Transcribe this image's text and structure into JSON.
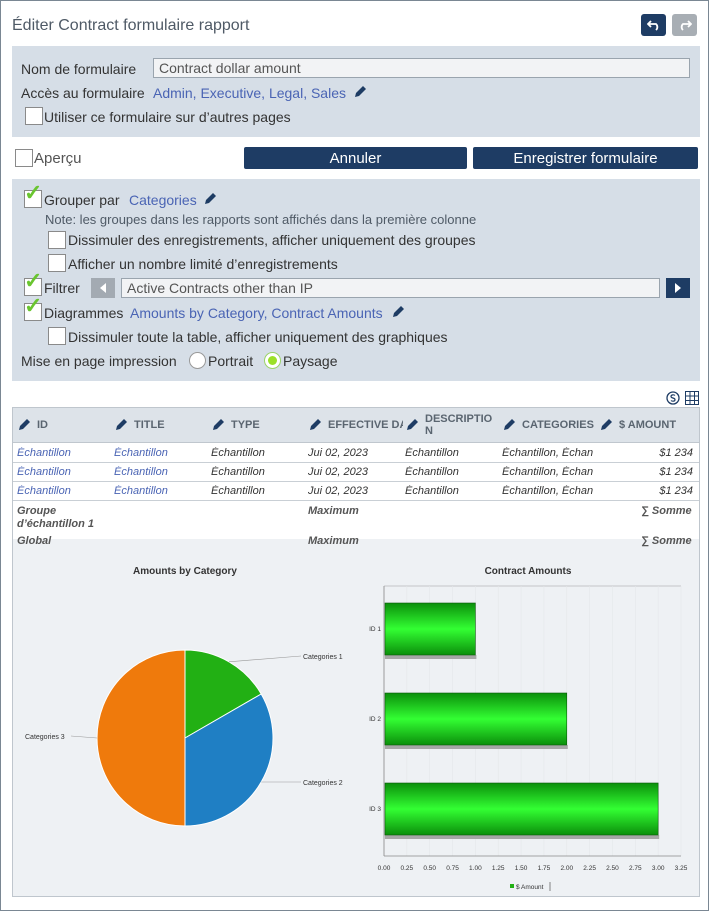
{
  "dialog": {
    "title": "Éditer Contract formulaire rapport"
  },
  "form": {
    "name_label": "Nom de formulaire",
    "name_value": "Contract dollar amount",
    "access_label": "Accès au formulaire",
    "access_value": "Admin, Executive, Legal, Sales",
    "use_other_pages": "Utiliser ce formulaire sur d’autres pages"
  },
  "preview_label": "Aperçu",
  "buttons": {
    "cancel": "Annuler",
    "save": "Enregistrer formulaire"
  },
  "options": {
    "group_by_label": "Grouper par",
    "group_by_value": "Categories",
    "note": "Note: les groupes dans les rapports sont affichés dans la première colonne",
    "hide_records": "Dissimuler des enregistrements, afficher uniquement des groupes",
    "limit_records": "Afficher un nombre limité d’enregistrements",
    "filter_label": "Filtrer",
    "filter_value": "Active Contracts other than IP",
    "charts_label": "Diagrammes",
    "charts_value": "Amounts by Category, Contract Amounts",
    "hide_table": "Dissimuler toute la table, afficher uniquement des graphiques",
    "print_layout_label": "Mise en page impression",
    "portrait": "Portrait",
    "landscape": "Paysage",
    "selected_layout": "Paysage"
  },
  "table": {
    "columns": [
      "ID",
      "TITLE",
      "TYPE",
      "EFFECTIVE DA",
      "DESCRIPTIO\nN",
      "CATEGORIES",
      "$ AMOUNT"
    ],
    "rows": [
      [
        "Échantillon",
        "Échantillon",
        "Échantillon",
        "Jui 02, 2023",
        "Échantillon",
        "Échantillon, Échan",
        "$1 234"
      ],
      [
        "Échantillon",
        "Échantillon",
        "Échantillon",
        "Jui 02, 2023",
        "Échantillon",
        "Échantillon, Échan",
        "$1 234"
      ],
      [
        "Échantillon",
        "Échantillon",
        "Échantillon",
        "Jui 02, 2023",
        "Échantillon",
        "Échantillon, Échan",
        "$1 234"
      ]
    ],
    "group_label": "Groupe d’échantillon 1",
    "global_label": "Global",
    "maximum": "Maximum",
    "sum": "∑ Somme"
  },
  "colors": {
    "panel": "#d6dee7",
    "button": "#1e3c64",
    "link": "#4a64b4",
    "check": "#69c52f"
  },
  "chart_data": [
    {
      "type": "pie",
      "title": "Amounts by Category",
      "labels": [
        "Categories 1",
        "Categories 2",
        "Categories 3"
      ],
      "values": [
        1,
        2,
        3
      ],
      "colors": [
        "#22b014",
        "#1f7fc4",
        "#ef7a0c"
      ]
    },
    {
      "type": "bar",
      "orientation": "horizontal",
      "title": "Contract Amounts",
      "categories": [
        "ID 1",
        "ID 2",
        "ID 3"
      ],
      "series": [
        {
          "name": "$ Amount",
          "values": [
            1,
            2,
            3
          ]
        }
      ],
      "xlim": [
        0,
        3.25
      ],
      "xticks": [
        "0.00",
        "0.25",
        "0.50",
        "0.75",
        "1.00",
        "1.25",
        "1.50",
        "1.75",
        "2.00",
        "2.25",
        "2.50",
        "2.75",
        "3.00",
        "3.25"
      ]
    }
  ]
}
